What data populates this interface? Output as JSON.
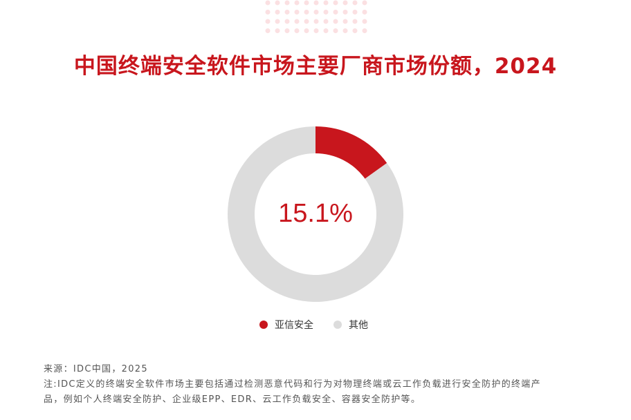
{
  "title": "中国终端安全软件市场主要厂商市场份额，2024",
  "chart_data": {
    "type": "pie",
    "donut": true,
    "title": "中国终端安全软件市场主要厂商市场份额，2024",
    "center_label": "15.1%",
    "categories": [
      "亚信安全",
      "其他"
    ],
    "values": [
      15.1,
      84.9
    ],
    "colors": [
      "#c8161d",
      "#dcdcdc"
    ],
    "legend_position": "bottom"
  },
  "footer": {
    "source": "来源：IDC中国，2025",
    "note_line1": "注:IDC定义的终端安全软件市场主要包括通过检测恶意代码和行为对物理终端或云工作负载进行安全防护的终端产",
    "note_line2": "品，例如个人终端安全防护、企业级EPP、EDR、云工作负载安全、容器安全防护等。"
  }
}
